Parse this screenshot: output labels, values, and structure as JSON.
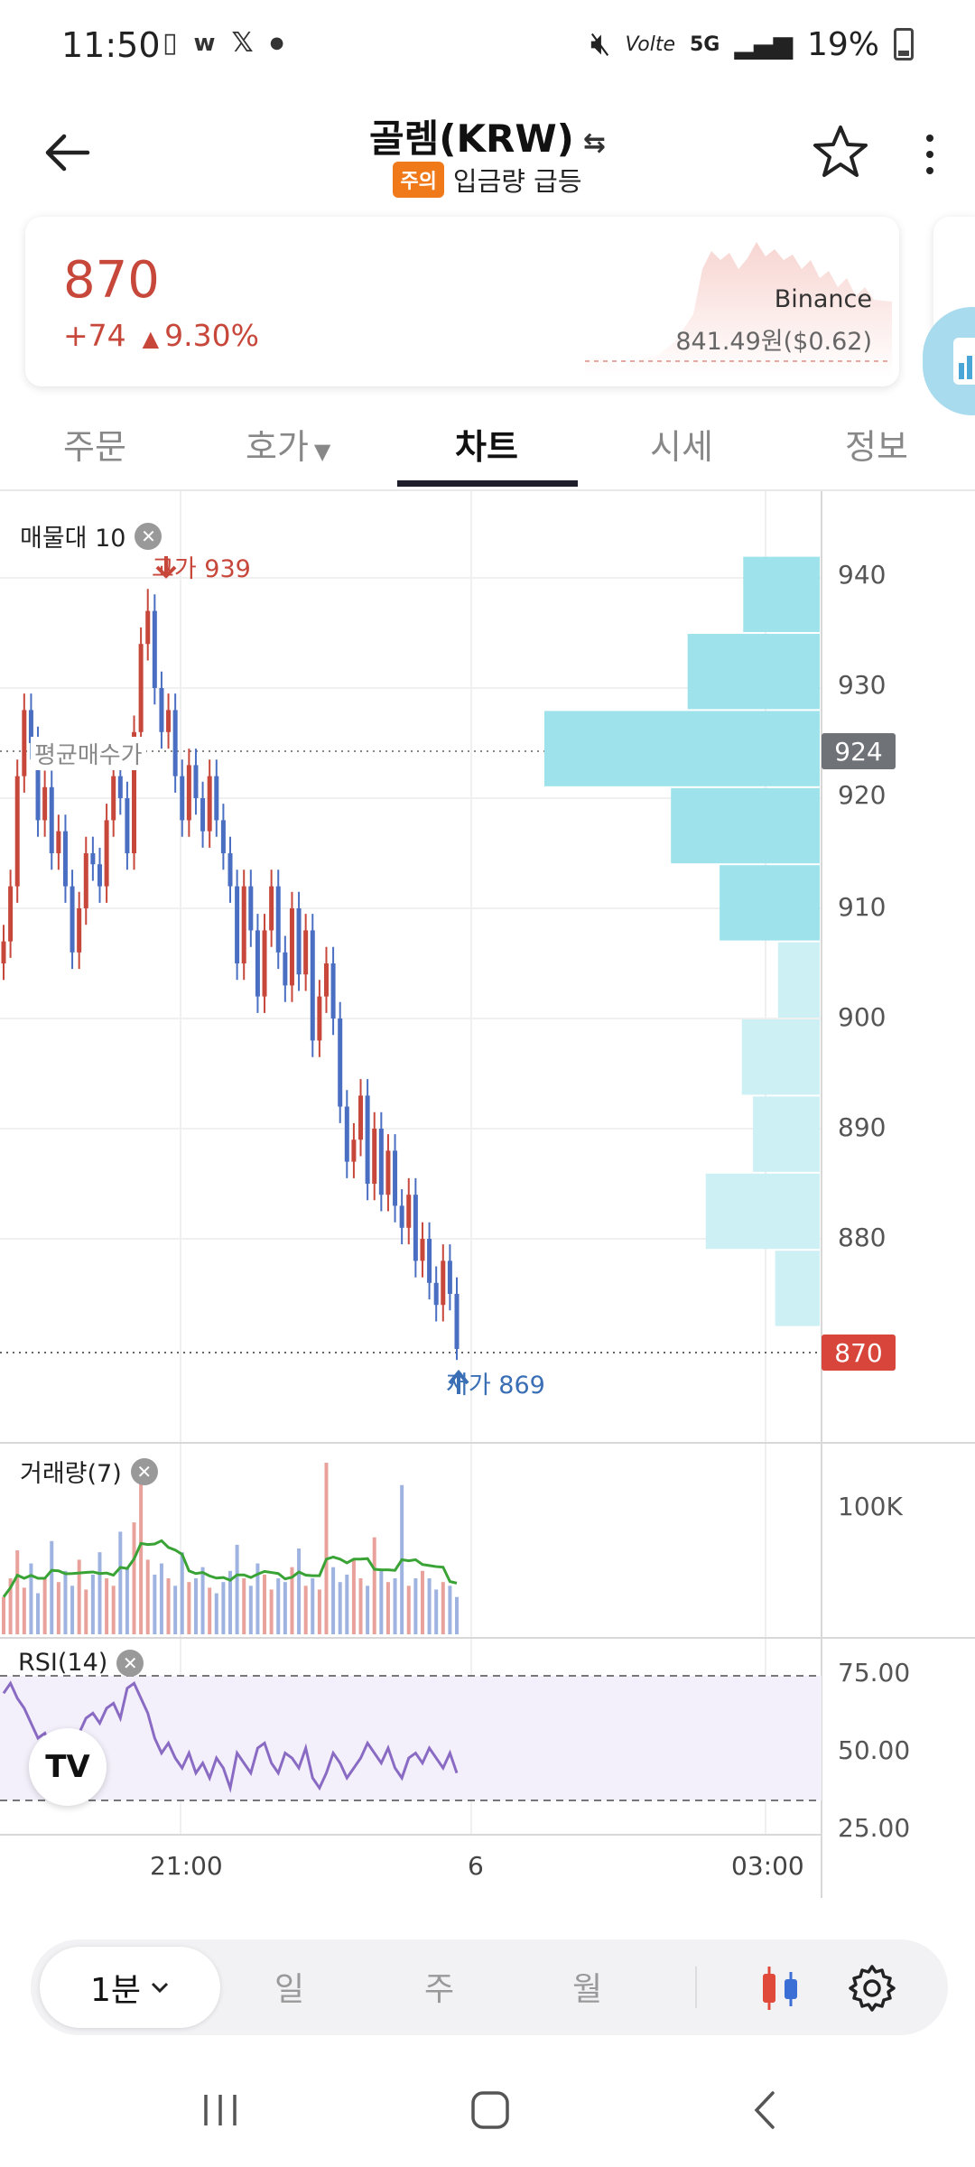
{
  "status": {
    "time": "11:50",
    "battery": "19%",
    "network": "5G",
    "volte": "Volte"
  },
  "header": {
    "title": "골렘(KRW)",
    "badge": "주의",
    "subtitle": "입금량 급등"
  },
  "price_card": {
    "price": "870",
    "change": "+74",
    "change_pct": "9.30%",
    "exchange": "Binance",
    "exchange_price": "841.49원($0.62)"
  },
  "tabs": [
    {
      "label": "주문"
    },
    {
      "label": "호가"
    },
    {
      "label": "차트"
    },
    {
      "label": "시세"
    },
    {
      "label": "정보"
    }
  ],
  "chart": {
    "volume_profile_label": "매물대 10",
    "high_label": "고가 939",
    "low_label": "저가 869",
    "avg_label": "평균매수가",
    "avg_price_tag": "924",
    "current_price_tag": "870",
    "y_ticks": [
      "940",
      "930",
      "920",
      "910",
      "900",
      "890",
      "880"
    ],
    "volume_label": "거래량(7)",
    "volume_tick": "100K",
    "rsi_label": "RSI(14)",
    "rsi_ticks": [
      "75.00",
      "50.00",
      "25.00"
    ],
    "x_ticks": [
      "21:00",
      "6",
      "03:00"
    ],
    "tv_logo": "TV",
    "colors": {
      "up": "#c8473b",
      "down": "#4a6fc2",
      "profile_strong": "#9ee3ec",
      "profile_light": "#cdf0f5",
      "volume_ma": "#3aa335",
      "rsi": "#8a6bc4"
    }
  },
  "chart_data": {
    "type": "candlestick",
    "title": "",
    "x_ticks": [
      "21:00",
      "6",
      "03:00"
    ],
    "ylim": [
      862,
      948
    ],
    "y_ticks": [
      940,
      930,
      920,
      910,
      900,
      890,
      880
    ],
    "high": 939,
    "low": 869,
    "average_buy_price": 924,
    "current_price": 870,
    "close_series": [
      907,
      912,
      922,
      928,
      925,
      918,
      921,
      915,
      917,
      912,
      906,
      910,
      915,
      914,
      912,
      918,
      922,
      920,
      915,
      926,
      934,
      937,
      930,
      926,
      928,
      922,
      918,
      923,
      920,
      917,
      922,
      918,
      915,
      912,
      905,
      912,
      908,
      902,
      908,
      912,
      906,
      903,
      910,
      904,
      908,
      898,
      902,
      905,
      900,
      892,
      887,
      889,
      893,
      885,
      890,
      884,
      888,
      883,
      881,
      884,
      878,
      880,
      876,
      874,
      878,
      875,
      870
    ],
    "volume_profile": [
      {
        "price_min": 935,
        "price_max": 942,
        "volume": 55
      },
      {
        "price_min": 928,
        "price_max": 935,
        "volume": 95
      },
      {
        "price_min": 921,
        "price_max": 928,
        "volume": 198
      },
      {
        "price_min": 914,
        "price_max": 921,
        "volume": 107
      },
      {
        "price_min": 907,
        "price_max": 914,
        "volume": 72
      },
      {
        "price_min": 900,
        "price_max": 907,
        "volume": 30
      },
      {
        "price_min": 893,
        "price_max": 900,
        "volume": 56
      },
      {
        "price_min": 886,
        "price_max": 893,
        "volume": 48
      },
      {
        "price_min": 879,
        "price_max": 886,
        "volume": 82
      },
      {
        "price_min": 872,
        "price_max": 879,
        "volume": 32
      }
    ],
    "volume_series": [
      20,
      30,
      45,
      25,
      38,
      22,
      30,
      50,
      28,
      34,
      26,
      40,
      24,
      32,
      44,
      30,
      26,
      55,
      36,
      60,
      90,
      40,
      32,
      38,
      30,
      26,
      44,
      28,
      30,
      36,
      25,
      22,
      28,
      34,
      48,
      30,
      26,
      38,
      32,
      24,
      30,
      28,
      36,
      46,
      26,
      30,
      24,
      92,
      36,
      28,
      32,
      40,
      30,
      26,
      52,
      34,
      28,
      30,
      80,
      26,
      30,
      34,
      30,
      24,
      28,
      26,
      20
    ],
    "rsi_series": [
      68,
      72,
      66,
      62,
      56,
      50,
      52,
      46,
      48,
      44,
      46,
      52,
      58,
      60,
      56,
      62,
      64,
      58,
      70,
      72,
      66,
      60,
      50,
      44,
      48,
      42,
      38,
      44,
      36,
      40,
      34,
      42,
      38,
      30,
      44,
      40,
      36,
      46,
      48,
      40,
      36,
      44,
      42,
      38,
      46,
      34,
      30,
      36,
      44,
      40,
      34,
      38,
      42,
      48,
      44,
      40,
      46,
      38,
      34,
      42,
      44,
      40,
      46,
      42,
      38,
      44,
      36
    ],
    "rsi_ylim": [
      20,
      80
    ],
    "rsi_bands": [
      75,
      25
    ]
  },
  "toolbar": {
    "interval": "1분",
    "day": "일",
    "week": "주",
    "month": "월"
  }
}
